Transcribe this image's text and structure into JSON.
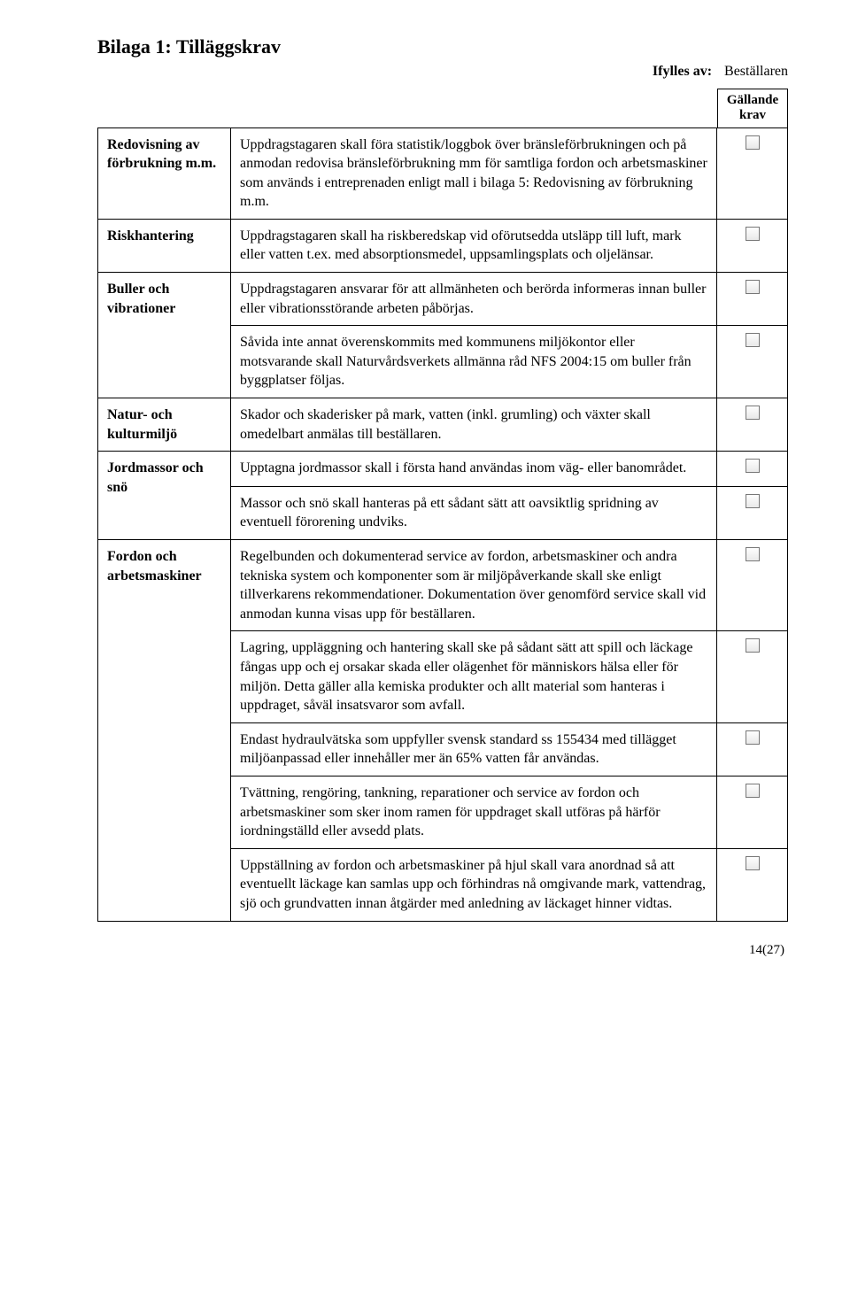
{
  "title": "Bilaga 1: Tilläggskrav",
  "filler": {
    "label": "Ifylles av:",
    "value": "Beställaren"
  },
  "headerCol": {
    "line1": "Gällande",
    "line2": "krav"
  },
  "rows": [
    {
      "label": "Redovisning av förbrukning m.m.",
      "text": "Uppdragstagaren skall föra statistik/loggbok över bränsleförbrukningen och på anmodan redovisa bränsleförbrukning mm för samtliga fordon och arbetsmaskiner som används i entreprenaden enligt mall i bilaga 5: Redovisning av förbrukning m.m.",
      "rowspanLabel": 1
    },
    {
      "label": "Riskhantering",
      "text": "Uppdragstagaren skall ha riskberedskap vid oförutsedda utsläpp till luft, mark eller vatten t.ex. med absorptionsmedel, uppsamlingsplats och oljelänsar.",
      "rowspanLabel": 1
    },
    {
      "label": "Buller och vibrationer",
      "text": "Uppdragstagaren ansvarar för att allmänheten och berörda informeras innan buller eller vibrationsstörande arbeten påbörjas.",
      "rowspanLabel": 2
    },
    {
      "label": null,
      "text": "Såvida inte annat överenskommits med kommunens miljökontor eller motsvarande skall Naturvårdsverkets allmänna råd NFS 2004:15 om buller från byggplatser följas.",
      "rowspanLabel": 0
    },
    {
      "label": "Natur- och kulturmiljö",
      "text": "Skador och skaderisker på mark, vatten (inkl. grumling) och växter skall omedelbart anmälas till beställaren.",
      "rowspanLabel": 1
    },
    {
      "label": "Jordmassor och snö",
      "text": "Upptagna jordmassor skall i första hand användas inom väg- eller banområdet.",
      "rowspanLabel": 2
    },
    {
      "label": null,
      "text": "Massor och snö skall hanteras på ett sådant sätt att oavsiktlig spridning av eventuell förorening undviks.",
      "rowspanLabel": 0
    },
    {
      "label": "Fordon och arbetsmaskiner",
      "text": "Regelbunden och dokumenterad service av fordon, arbetsmaskiner och andra tekniska system och komponenter som är miljöpåverkande skall ske enligt tillverkarens rekommendationer. Dokumentation över genomförd service skall vid anmodan kunna visas upp för beställaren.",
      "rowspanLabel": 5
    },
    {
      "label": null,
      "text": "Lagring, uppläggning och hantering skall ske på sådant sätt att spill och läckage fångas upp och ej orsakar skada eller olägenhet för människors hälsa eller för miljön. Detta gäller alla kemiska produkter och allt material som hanteras i uppdraget, såväl insatsvaror som avfall.",
      "rowspanLabel": 0
    },
    {
      "label": null,
      "text": "Endast hydraulvätska som uppfyller svensk standard ss 155434 med tillägget miljöanpassad eller innehåller mer än 65% vatten får användas.",
      "rowspanLabel": 0
    },
    {
      "label": null,
      "text": "Tvättning, rengöring, tankning, reparationer och service av fordon och arbetsmaskiner som sker inom ramen för uppdraget skall utföras på härför iordningställd eller avsedd plats.",
      "rowspanLabel": 0
    },
    {
      "label": null,
      "text": "Uppställning av fordon och arbetsmaskiner på hjul skall vara anordnad så att eventuellt läckage kan samlas upp och förhindras nå omgivande mark, vattendrag, sjö och grundvatten innan åtgärder med anledning av läckaget hinner vidtas.",
      "rowspanLabel": 0
    }
  ],
  "pageNumber": "14(27)"
}
